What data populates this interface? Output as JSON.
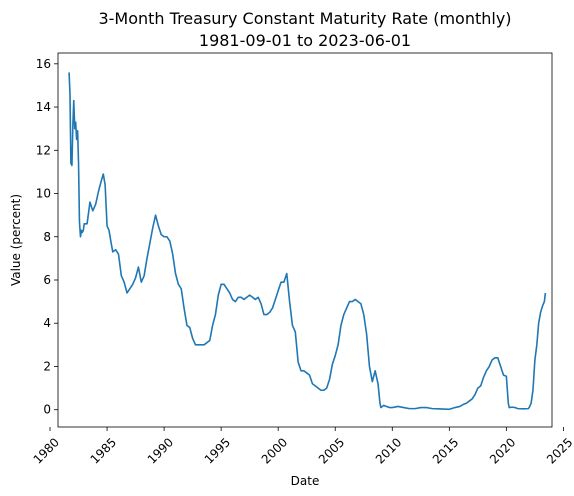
{
  "chart_data": {
    "type": "line",
    "title": "3-Month Treasury Constant Maturity Rate (monthly)",
    "subtitle": "1981-09-01 to 2023-06-01",
    "xlabel": "Date",
    "ylabel": "Value (percent)",
    "xlim": [
      1980.7,
      2024.0
    ],
    "ylim": [
      -0.8,
      16.5
    ],
    "x_ticks": [
      1980,
      1985,
      1990,
      1995,
      2000,
      2005,
      2010,
      2015,
      2020,
      2025
    ],
    "y_ticks": [
      0,
      2,
      4,
      6,
      8,
      10,
      12,
      14,
      16
    ],
    "grid": false,
    "line_color": "#1f77b4",
    "series": [
      {
        "x": [
          1981.67,
          1981.75,
          1981.83,
          1981.92,
          1982.0,
          1982.08,
          1982.17,
          1982.25,
          1982.33,
          1982.42,
          1982.5,
          1982.58,
          1982.67,
          1982.75,
          1982.83,
          1982.92,
          1983.0,
          1983.25,
          1983.5,
          1983.75,
          1984.0,
          1984.25,
          1984.5,
          1984.67,
          1984.83,
          1985.0,
          1985.17,
          1985.33,
          1985.5,
          1985.75,
          1986.0,
          1986.25,
          1986.5,
          1986.75,
          1987.0,
          1987.25,
          1987.5,
          1987.75,
          1988.0,
          1988.25,
          1988.5,
          1988.75,
          1989.0,
          1989.25,
          1989.5,
          1989.75,
          1990.0,
          1990.25,
          1990.5,
          1990.75,
          1991.0,
          1991.25,
          1991.5,
          1991.75,
          1992.0,
          1992.25,
          1992.5,
          1992.75,
          1993.0,
          1993.25,
          1993.5,
          1993.75,
          1994.0,
          1994.25,
          1994.5,
          1994.75,
          1995.0,
          1995.25,
          1995.5,
          1995.75,
          1996.0,
          1996.25,
          1996.5,
          1996.75,
          1997.0,
          1997.25,
          1997.5,
          1997.75,
          1998.0,
          1998.25,
          1998.5,
          1998.75,
          1999.0,
          1999.25,
          1999.5,
          1999.75,
          2000.0,
          2000.25,
          2000.5,
          2000.75,
          2001.0,
          2001.25,
          2001.5,
          2001.75,
          2002.0,
          2002.25,
          2002.5,
          2002.75,
          2003.0,
          2003.25,
          2003.5,
          2003.75,
          2004.0,
          2004.25,
          2004.5,
          2004.75,
          2005.0,
          2005.25,
          2005.5,
          2005.75,
          2006.0,
          2006.25,
          2006.5,
          2006.75,
          2007.0,
          2007.25,
          2007.5,
          2007.75,
          2008.0,
          2008.25,
          2008.5,
          2008.75,
          2008.92,
          2009.0,
          2009.25,
          2009.5,
          2009.75,
          2010.0,
          2010.5,
          2011.0,
          2011.5,
          2012.0,
          2012.5,
          2013.0,
          2013.5,
          2014.0,
          2014.5,
          2015.0,
          2015.5,
          2015.92,
          2016.25,
          2016.5,
          2016.75,
          2017.0,
          2017.25,
          2017.5,
          2017.75,
          2018.0,
          2018.25,
          2018.5,
          2018.75,
          2019.0,
          2019.25,
          2019.5,
          2019.75,
          2020.0,
          2020.17,
          2020.25,
          2020.5,
          2020.75,
          2021.0,
          2021.5,
          2021.92,
          2022.0,
          2022.17,
          2022.33,
          2022.5,
          2022.67,
          2022.83,
          2023.0,
          2023.17,
          2023.33,
          2023.42
        ],
        "values": [
          15.6,
          14.6,
          11.4,
          11.3,
          13.1,
          14.3,
          13.0,
          13.3,
          12.5,
          12.9,
          11.4,
          8.7,
          8.0,
          8.3,
          8.2,
          8.3,
          8.6,
          8.6,
          9.6,
          9.2,
          9.5,
          10.1,
          10.6,
          10.9,
          10.4,
          8.5,
          8.3,
          7.8,
          7.3,
          7.4,
          7.2,
          6.2,
          5.9,
          5.4,
          5.6,
          5.8,
          6.1,
          6.6,
          5.9,
          6.2,
          7.0,
          7.7,
          8.4,
          9.0,
          8.5,
          8.1,
          8.0,
          8.0,
          7.8,
          7.2,
          6.3,
          5.8,
          5.6,
          4.7,
          3.9,
          3.8,
          3.3,
          3.0,
          3.0,
          3.0,
          3.0,
          3.1,
          3.2,
          3.9,
          4.4,
          5.3,
          5.8,
          5.8,
          5.6,
          5.4,
          5.1,
          5.0,
          5.2,
          5.2,
          5.1,
          5.2,
          5.3,
          5.2,
          5.1,
          5.2,
          4.9,
          4.4,
          4.4,
          4.5,
          4.7,
          5.1,
          5.5,
          5.9,
          5.9,
          6.3,
          5.0,
          3.9,
          3.6,
          2.2,
          1.8,
          1.8,
          1.7,
          1.6,
          1.2,
          1.1,
          1.0,
          0.9,
          0.9,
          1.0,
          1.4,
          2.1,
          2.5,
          3.0,
          3.9,
          4.4,
          4.7,
          5.0,
          5.0,
          5.1,
          5.0,
          4.9,
          4.4,
          3.5,
          2.0,
          1.3,
          1.8,
          1.2,
          0.3,
          0.1,
          0.2,
          0.15,
          0.1,
          0.1,
          0.15,
          0.1,
          0.05,
          0.05,
          0.1,
          0.1,
          0.05,
          0.04,
          0.03,
          0.02,
          0.1,
          0.15,
          0.25,
          0.3,
          0.4,
          0.5,
          0.7,
          1.0,
          1.1,
          1.5,
          1.8,
          2.0,
          2.3,
          2.4,
          2.4,
          2.0,
          1.6,
          1.55,
          0.3,
          0.1,
          0.12,
          0.1,
          0.05,
          0.04,
          0.05,
          0.1,
          0.3,
          0.9,
          2.3,
          3.0,
          4.0,
          4.5,
          4.8,
          5.0,
          5.4
        ]
      }
    ]
  }
}
